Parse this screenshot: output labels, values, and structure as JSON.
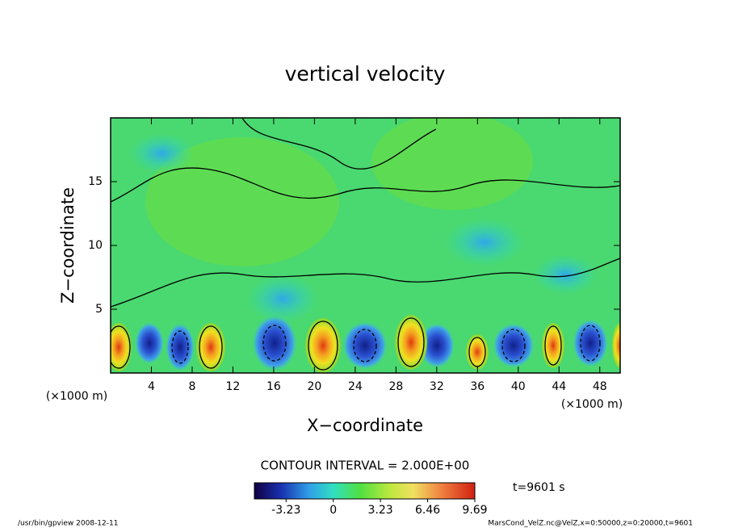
{
  "chart_data": {
    "type": "contour",
    "title": "vertical velocity",
    "xlabel": "X−coordinate",
    "ylabel": "Z−coordinate",
    "x_unit": "(×1000 m)",
    "y_unit": "(×1000 m)",
    "xlim": [
      0,
      50
    ],
    "ylim": [
      0,
      20
    ],
    "xticks": [
      4,
      8,
      12,
      16,
      20,
      24,
      28,
      32,
      36,
      40,
      44,
      48
    ],
    "yticks": [
      5,
      10,
      15
    ],
    "colorbar": {
      "lim": [
        -5.4,
        9.69
      ],
      "ticks": [
        -3.23,
        0,
        3.23,
        6.46,
        9.69
      ]
    },
    "contour_interval": "CONTOUR INTERVAL = 2.000E+00",
    "time": "t=9601 s"
  },
  "footer": {
    "left": "/usr/bin/gpview   2008-12-11",
    "right": "MarsCond_VelZ.nc@VelZ,x=0:50000,z=0:20000,t=9601"
  }
}
